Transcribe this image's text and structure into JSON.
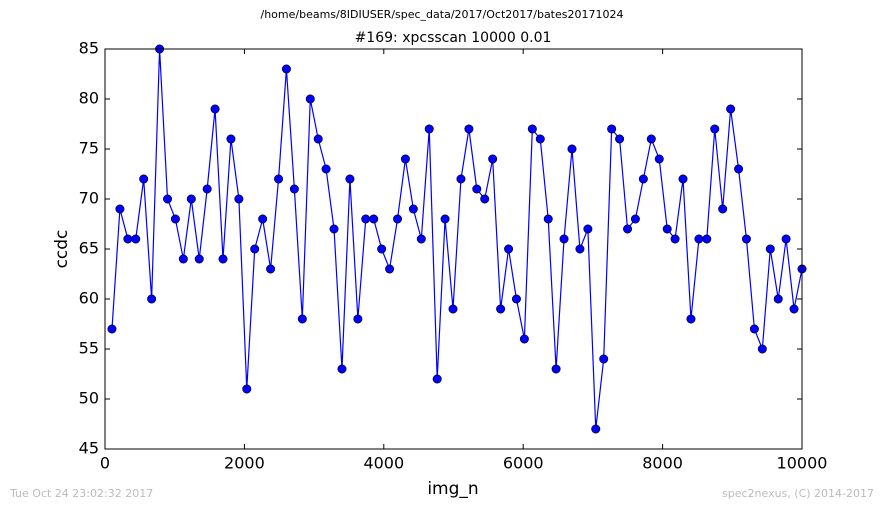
{
  "chart_data": {
    "type": "line",
    "suptitle": "/home/beams/8IDIUSER/spec_data/2017/Oct2017/bates20171024",
    "title": "#169: xpcsscan 10000 0.01",
    "xlabel": "img_n",
    "ylabel": "ccdc",
    "footer_left": "Tue Oct 24 23:02:32 2017",
    "footer_right": "spec2nexus, (C) 2014-2017",
    "x": [
      100,
      214,
      328,
      441,
      555,
      669,
      783,
      897,
      1010,
      1124,
      1238,
      1352,
      1466,
      1579,
      1693,
      1807,
      1921,
      2034,
      2148,
      2262,
      2376,
      2490,
      2603,
      2717,
      2831,
      2945,
      3059,
      3172,
      3286,
      3400,
      3514,
      3628,
      3741,
      3855,
      3969,
      4083,
      4197,
      4310,
      4424,
      4538,
      4652,
      4766,
      4879,
      4993,
      5107,
      5221,
      5334,
      5448,
      5562,
      5676,
      5790,
      5903,
      6017,
      6131,
      6245,
      6359,
      6472,
      6586,
      6700,
      6814,
      6928,
      7041,
      7155,
      7269,
      7383,
      7497,
      7610,
      7724,
      7838,
      7952,
      8066,
      8179,
      8293,
      8407,
      8521,
      8634,
      8748,
      8862,
      8976,
      9090,
      9203,
      9317,
      9431,
      9545,
      9659,
      9772,
      9886,
      10000
    ],
    "series": [
      {
        "color": "#0000ff",
        "values": [
          57,
          69,
          66,
          66,
          72,
          60,
          85,
          70,
          68,
          64,
          70,
          64,
          71,
          79,
          64,
          76,
          70,
          51,
          65,
          68,
          63,
          72,
          83,
          71,
          58,
          80,
          76,
          73,
          67,
          53,
          72,
          58,
          68,
          68,
          65,
          63,
          68,
          74,
          69,
          66,
          77,
          52,
          68,
          59,
          72,
          77,
          71,
          70,
          74,
          59,
          65,
          60,
          56,
          77,
          76,
          68,
          53,
          66,
          75,
          65,
          67,
          47,
          54,
          77,
          76,
          67,
          68,
          72,
          76,
          74,
          67,
          66,
          72,
          58,
          66,
          66,
          77,
          69,
          79,
          73,
          66,
          57,
          55,
          65,
          60,
          66,
          59,
          63
        ]
      }
    ],
    "xlim": [
      0,
      10000
    ],
    "xticks": [
      0,
      2000,
      4000,
      6000,
      8000,
      10000
    ],
    "ylim": [
      45,
      85
    ],
    "yticks": [
      45,
      50,
      55,
      60,
      65,
      70,
      75,
      80,
      85
    ]
  }
}
